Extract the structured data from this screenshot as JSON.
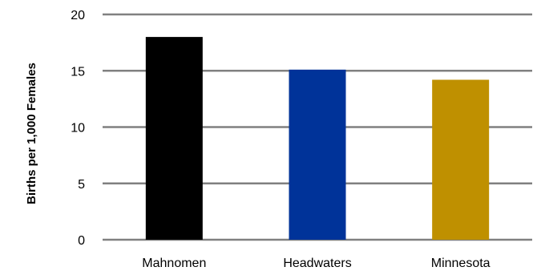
{
  "chart_data": {
    "type": "bar",
    "categories": [
      "Mahnomen",
      "Headwaters",
      "Minnesota"
    ],
    "values": [
      18.0,
      15.1,
      14.2
    ],
    "colors": [
      "#000000",
      "#003399",
      "#BF9000"
    ],
    "title": "",
    "xlabel": "",
    "ylabel": "Births per 1,000 Females",
    "ylim": [
      0,
      20
    ],
    "yticks": [
      "0",
      "5",
      "10",
      "15",
      "20"
    ],
    "grid": true,
    "legend": "none"
  }
}
